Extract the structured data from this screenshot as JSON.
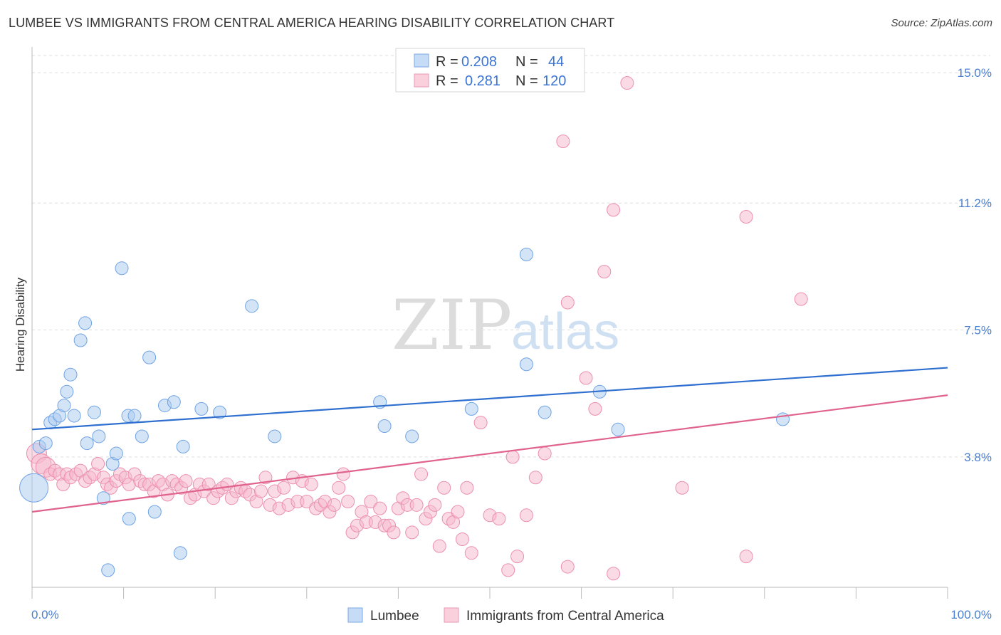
{
  "title": "LUMBEE VS IMMIGRANTS FROM CENTRAL AMERICA HEARING DISABILITY CORRELATION CHART",
  "source": "Source: ZipAtlas.com",
  "watermark": {
    "zip": "ZIP",
    "atlas": "atlas"
  },
  "legend_top": {
    "rows": [
      {
        "r_label": "R =",
        "r_value": "0.208",
        "n_label": "N =",
        "n_value": "44",
        "color": "#a9c9f0"
      },
      {
        "r_label": "R =",
        "r_value": "0.281",
        "n_label": "N =",
        "n_value": "120",
        "color": "#f6b8cb"
      }
    ]
  },
  "legend_bottom": [
    {
      "label": "Lumbee",
      "color": "#a9c9f0"
    },
    {
      "label": "Immigrants from Central America",
      "color": "#f6b8cb"
    }
  ],
  "chart_data": {
    "type": "scatter",
    "title": "LUMBEE VS IMMIGRANTS FROM CENTRAL AMERICA HEARING DISABILITY CORRELATION CHART",
    "xlabel": "",
    "ylabel": "Hearing Disability",
    "xlim": [
      0,
      100
    ],
    "ylim": [
      0,
      15.5
    ],
    "x_tick_labels": [
      "0.0%",
      "100.0%"
    ],
    "y_ticks": [
      3.8,
      7.5,
      11.2,
      15.0
    ],
    "y_tick_labels": [
      "3.8%",
      "7.5%",
      "11.2%",
      "15.0%"
    ],
    "grid": true,
    "legend_position": "top-center",
    "series": [
      {
        "name": "Lumbee",
        "color": "#6fa3e4",
        "fill": "#a9c9f0",
        "trend": {
          "x": [
            0,
            100
          ],
          "y": [
            4.6,
            6.4
          ],
          "color": "#2f6fd0"
        },
        "points": [
          [
            0.2,
            2.9
          ],
          [
            0.8,
            4.1
          ],
          [
            1.5,
            4.2
          ],
          [
            2.0,
            4.8
          ],
          [
            2.5,
            4.9
          ],
          [
            3.0,
            5.0
          ],
          [
            3.5,
            5.3
          ],
          [
            3.8,
            5.7
          ],
          [
            4.2,
            6.2
          ],
          [
            4.6,
            5.0
          ],
          [
            5.3,
            7.2
          ],
          [
            5.8,
            7.7
          ],
          [
            6.0,
            4.2
          ],
          [
            6.8,
            5.1
          ],
          [
            7.3,
            4.4
          ],
          [
            7.8,
            2.6
          ],
          [
            8.3,
            0.5
          ],
          [
            8.8,
            3.6
          ],
          [
            9.2,
            3.9
          ],
          [
            9.8,
            9.3
          ],
          [
            10.5,
            5.0
          ],
          [
            10.6,
            2.0
          ],
          [
            11.2,
            5.0
          ],
          [
            12.0,
            4.4
          ],
          [
            12.8,
            6.7
          ],
          [
            13.4,
            2.2
          ],
          [
            14.5,
            5.3
          ],
          [
            15.5,
            5.4
          ],
          [
            16.2,
            1.0
          ],
          [
            16.5,
            4.1
          ],
          [
            18.5,
            5.2
          ],
          [
            20.5,
            5.1
          ],
          [
            24.0,
            8.2
          ],
          [
            26.5,
            4.4
          ],
          [
            38.0,
            5.4
          ],
          [
            38.5,
            4.7
          ],
          [
            41.5,
            4.4
          ],
          [
            48.0,
            5.2
          ],
          [
            54.0,
            9.7
          ],
          [
            54.0,
            6.5
          ],
          [
            56.0,
            5.1
          ],
          [
            62.0,
            5.7
          ],
          [
            64.0,
            4.6
          ],
          [
            82.0,
            4.9
          ]
        ]
      },
      {
        "name": "Immigrants from Central America",
        "color": "#ec8fae",
        "fill": "#f6b8cb",
        "trend": {
          "x": [
            0,
            100
          ],
          "y": [
            2.2,
            5.6
          ],
          "color": "#e0638f"
        },
        "points": [
          [
            0.5,
            3.9
          ],
          [
            1.0,
            3.6
          ],
          [
            1.5,
            3.5
          ],
          [
            2.0,
            3.3
          ],
          [
            2.5,
            3.4
          ],
          [
            3.0,
            3.3
          ],
          [
            3.4,
            3.0
          ],
          [
            3.8,
            3.3
          ],
          [
            4.2,
            3.2
          ],
          [
            4.8,
            3.3
          ],
          [
            5.3,
            3.4
          ],
          [
            5.8,
            3.1
          ],
          [
            6.3,
            3.2
          ],
          [
            6.8,
            3.3
          ],
          [
            7.2,
            3.6
          ],
          [
            7.8,
            3.2
          ],
          [
            8.2,
            3.0
          ],
          [
            8.6,
            2.9
          ],
          [
            9.2,
            3.1
          ],
          [
            9.6,
            3.3
          ],
          [
            10.2,
            3.2
          ],
          [
            10.6,
            3.0
          ],
          [
            11.2,
            3.3
          ],
          [
            11.8,
            3.1
          ],
          [
            12.3,
            3.0
          ],
          [
            12.8,
            3.0
          ],
          [
            13.3,
            2.8
          ],
          [
            13.8,
            3.1
          ],
          [
            14.3,
            3.0
          ],
          [
            14.8,
            2.7
          ],
          [
            15.3,
            3.1
          ],
          [
            15.8,
            3.0
          ],
          [
            16.3,
            2.9
          ],
          [
            16.8,
            3.1
          ],
          [
            17.3,
            2.6
          ],
          [
            17.8,
            2.7
          ],
          [
            18.3,
            3.0
          ],
          [
            18.8,
            2.8
          ],
          [
            19.3,
            3.0
          ],
          [
            19.8,
            2.6
          ],
          [
            20.3,
            2.8
          ],
          [
            20.8,
            2.9
          ],
          [
            21.3,
            3.0
          ],
          [
            21.8,
            2.6
          ],
          [
            22.3,
            2.8
          ],
          [
            22.8,
            2.9
          ],
          [
            23.3,
            2.8
          ],
          [
            23.8,
            2.7
          ],
          [
            24.5,
            2.5
          ],
          [
            25.0,
            2.8
          ],
          [
            25.5,
            3.2
          ],
          [
            26.0,
            2.4
          ],
          [
            26.5,
            2.8
          ],
          [
            27.0,
            2.3
          ],
          [
            27.5,
            2.9
          ],
          [
            28.0,
            2.4
          ],
          [
            28.5,
            3.2
          ],
          [
            29.0,
            2.5
          ],
          [
            29.5,
            3.1
          ],
          [
            30.0,
            2.5
          ],
          [
            30.5,
            3.0
          ],
          [
            31.0,
            2.3
          ],
          [
            31.5,
            2.4
          ],
          [
            32.0,
            2.5
          ],
          [
            32.5,
            2.2
          ],
          [
            33.0,
            2.4
          ],
          [
            33.5,
            2.9
          ],
          [
            34.0,
            3.3
          ],
          [
            34.5,
            2.5
          ],
          [
            35.0,
            1.6
          ],
          [
            35.5,
            1.8
          ],
          [
            36.0,
            2.2
          ],
          [
            36.5,
            1.9
          ],
          [
            37.0,
            2.5
          ],
          [
            37.5,
            1.9
          ],
          [
            38.0,
            2.3
          ],
          [
            38.5,
            1.8
          ],
          [
            39.0,
            1.8
          ],
          [
            39.5,
            1.6
          ],
          [
            40.0,
            2.3
          ],
          [
            40.5,
            2.6
          ],
          [
            41.0,
            2.4
          ],
          [
            41.5,
            1.6
          ],
          [
            42.0,
            2.4
          ],
          [
            42.5,
            3.3
          ],
          [
            43.0,
            2.0
          ],
          [
            43.5,
            2.2
          ],
          [
            44.0,
            2.4
          ],
          [
            44.5,
            1.2
          ],
          [
            45.0,
            2.9
          ],
          [
            45.5,
            2.0
          ],
          [
            46.0,
            1.9
          ],
          [
            46.5,
            2.2
          ],
          [
            47.0,
            1.4
          ],
          [
            47.5,
            2.9
          ],
          [
            48.0,
            1.0
          ],
          [
            49.0,
            4.8
          ],
          [
            50.0,
            2.1
          ],
          [
            51.0,
            2.0
          ],
          [
            52.0,
            0.5
          ],
          [
            52.5,
            3.8
          ],
          [
            53.0,
            0.9
          ],
          [
            54.0,
            2.1
          ],
          [
            55.0,
            3.2
          ],
          [
            56.0,
            3.9
          ],
          [
            58.0,
            13.0
          ],
          [
            58.5,
            8.3
          ],
          [
            58.5,
            0.6
          ],
          [
            60.5,
            6.1
          ],
          [
            61.5,
            5.2
          ],
          [
            62.5,
            9.2
          ],
          [
            63.5,
            0.4
          ],
          [
            63.5,
            11.0
          ],
          [
            65.0,
            14.7
          ],
          [
            71.0,
            2.9
          ],
          [
            78.0,
            10.8
          ],
          [
            78.0,
            0.9
          ],
          [
            84.0,
            8.4
          ]
        ]
      }
    ]
  }
}
